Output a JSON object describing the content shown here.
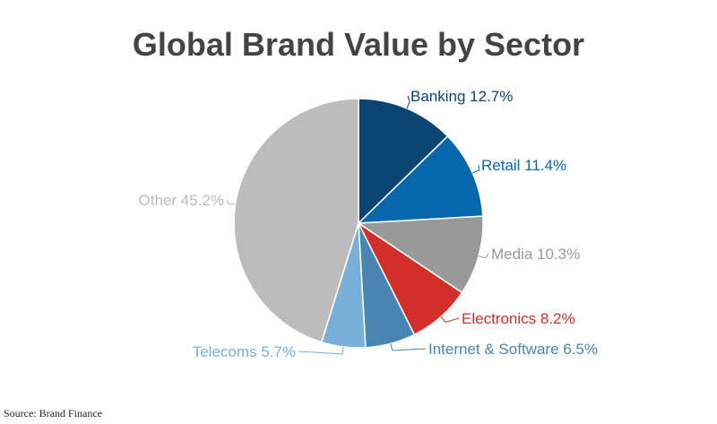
{
  "chart_data": {
    "type": "pie",
    "title": "Global Brand Value by Sector",
    "source": "Source: Brand Finance",
    "slices": [
      {
        "label": "Banking",
        "value": 12.7,
        "display": "Banking 12.7%",
        "color": "#0b4574"
      },
      {
        "label": "Retail",
        "value": 11.4,
        "display": "Retail 11.4%",
        "color": "#0767ad"
      },
      {
        "label": "Media",
        "value": 10.3,
        "display": "Media 10.3%",
        "color": "#999999"
      },
      {
        "label": "Electronics",
        "value": 8.2,
        "display": "Electronics 8.2%",
        "color": "#d22e2a"
      },
      {
        "label": "Internet & Software",
        "value": 6.5,
        "display": "Internet & Software 6.5%",
        "color": "#4a86b3"
      },
      {
        "label": "Telecoms",
        "value": 5.7,
        "display": "Telecoms 5.7%",
        "color": "#79b0d9"
      },
      {
        "label": "Other",
        "value": 45.2,
        "display": "Other 45.2%",
        "color": "#bcbcbc"
      }
    ]
  }
}
